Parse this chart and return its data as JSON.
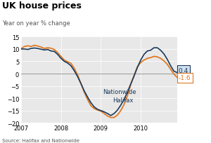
{
  "title": "UK house prices",
  "subtitle": "Year on year % change",
  "source": "Source: Halifax and Nationwide",
  "ylim": [
    -20,
    15
  ],
  "yticks": [
    -20,
    -15,
    -10,
    -5,
    0,
    5,
    10,
    15
  ],
  "nationwide_label": "Nationwide",
  "halifax_label": "Halifax",
  "nationwide_end_label": "0.4",
  "halifax_end_label": "-1.6",
  "nationwide_color": "#1a3a5c",
  "halifax_color": "#e07820",
  "nationwide_box_color": "#d0e0ee",
  "background_color": "#e8e8e8",
  "title_fontsize": 9,
  "subtitle_fontsize": 6,
  "tick_fontsize": 6,
  "source_fontsize": 5,
  "nationwide_x": [
    0.0,
    0.083,
    0.167,
    0.25,
    0.333,
    0.417,
    0.5,
    0.583,
    0.667,
    0.75,
    0.833,
    0.917,
    1.0,
    1.083,
    1.167,
    1.25,
    1.333,
    1.417,
    1.5,
    1.583,
    1.667,
    1.75,
    1.833,
    1.917,
    2.0,
    2.083,
    2.167,
    2.25,
    2.333,
    2.417,
    2.5,
    2.583,
    2.667,
    2.75,
    2.833,
    2.917,
    3.0,
    3.083,
    3.167,
    3.25,
    3.333,
    3.417,
    3.5,
    3.583,
    3.667,
    3.75,
    3.833,
    3.917
  ],
  "nationwide_y": [
    10.0,
    10.0,
    9.8,
    10.2,
    10.4,
    10.2,
    9.9,
    9.6,
    9.8,
    9.2,
    9.0,
    7.8,
    6.2,
    5.0,
    4.3,
    3.2,
    1.2,
    -1.2,
    -4.0,
    -7.0,
    -9.5,
    -11.8,
    -13.5,
    -14.5,
    -15.0,
    -15.5,
    -16.2,
    -17.0,
    -16.2,
    -14.8,
    -12.8,
    -10.5,
    -7.5,
    -4.2,
    -1.0,
    2.5,
    5.5,
    7.8,
    9.2,
    9.5,
    10.5,
    10.5,
    9.5,
    8.0,
    5.8,
    3.2,
    1.0,
    0.4
  ],
  "halifax_x": [
    0.0,
    0.083,
    0.167,
    0.25,
    0.333,
    0.417,
    0.5,
    0.583,
    0.667,
    0.75,
    0.833,
    0.917,
    1.0,
    1.083,
    1.167,
    1.25,
    1.333,
    1.417,
    1.5,
    1.583,
    1.667,
    1.75,
    1.833,
    1.917,
    2.0,
    2.083,
    2.167,
    2.25,
    2.333,
    2.417,
    2.5,
    2.583,
    2.667,
    2.75,
    2.833,
    2.917,
    3.0,
    3.083,
    3.167,
    3.25,
    3.333,
    3.417,
    3.5,
    3.583,
    3.667,
    3.75,
    3.833,
    3.917
  ],
  "halifax_y": [
    10.2,
    11.0,
    11.3,
    11.0,
    11.5,
    11.2,
    10.8,
    10.2,
    10.5,
    10.3,
    9.8,
    8.5,
    7.0,
    5.5,
    4.8,
    4.2,
    2.2,
    -0.5,
    -4.0,
    -7.5,
    -10.5,
    -13.0,
    -14.2,
    -14.8,
    -15.2,
    -16.2,
    -17.2,
    -17.8,
    -17.8,
    -16.8,
    -15.0,
    -12.5,
    -9.0,
    -4.5,
    -0.8,
    2.8,
    4.5,
    5.5,
    6.2,
    6.5,
    7.0,
    6.8,
    6.2,
    5.2,
    3.8,
    1.8,
    -0.2,
    -1.6
  ]
}
